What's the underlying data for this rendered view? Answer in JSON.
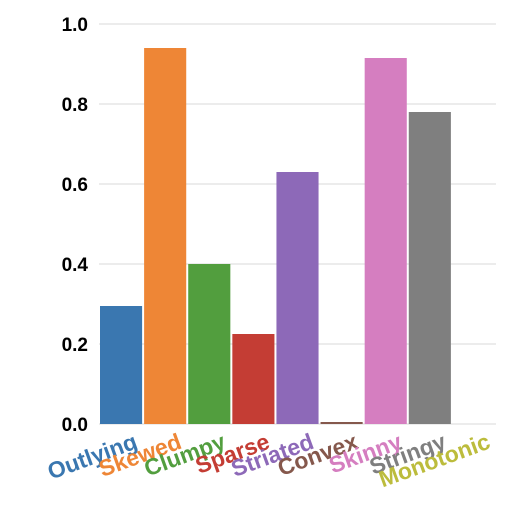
{
  "chart_data": {
    "type": "bar",
    "categories": [
      "Outlying",
      "Skewed",
      "Clumpy",
      "Sparse",
      "Striated",
      "Convex",
      "Skinny",
      "Stringy",
      "Monotonic"
    ],
    "values": [
      0.295,
      0.94,
      0.4,
      0.225,
      0.63,
      0.005,
      0.915,
      0.78,
      0.0
    ],
    "colors": [
      "#3a77b0",
      "#ee8636",
      "#529e3e",
      "#c43d34",
      "#8d69b8",
      "#85584c",
      "#d57ec0",
      "#7f7f7f",
      "#bcbc3c"
    ],
    "ylim": [
      0,
      1.0
    ],
    "yticks": [
      "0.0",
      "0.2",
      "0.4",
      "0.6",
      "0.8",
      "1.0"
    ],
    "grid": true,
    "title": "",
    "xlabel": "",
    "ylabel": ""
  }
}
